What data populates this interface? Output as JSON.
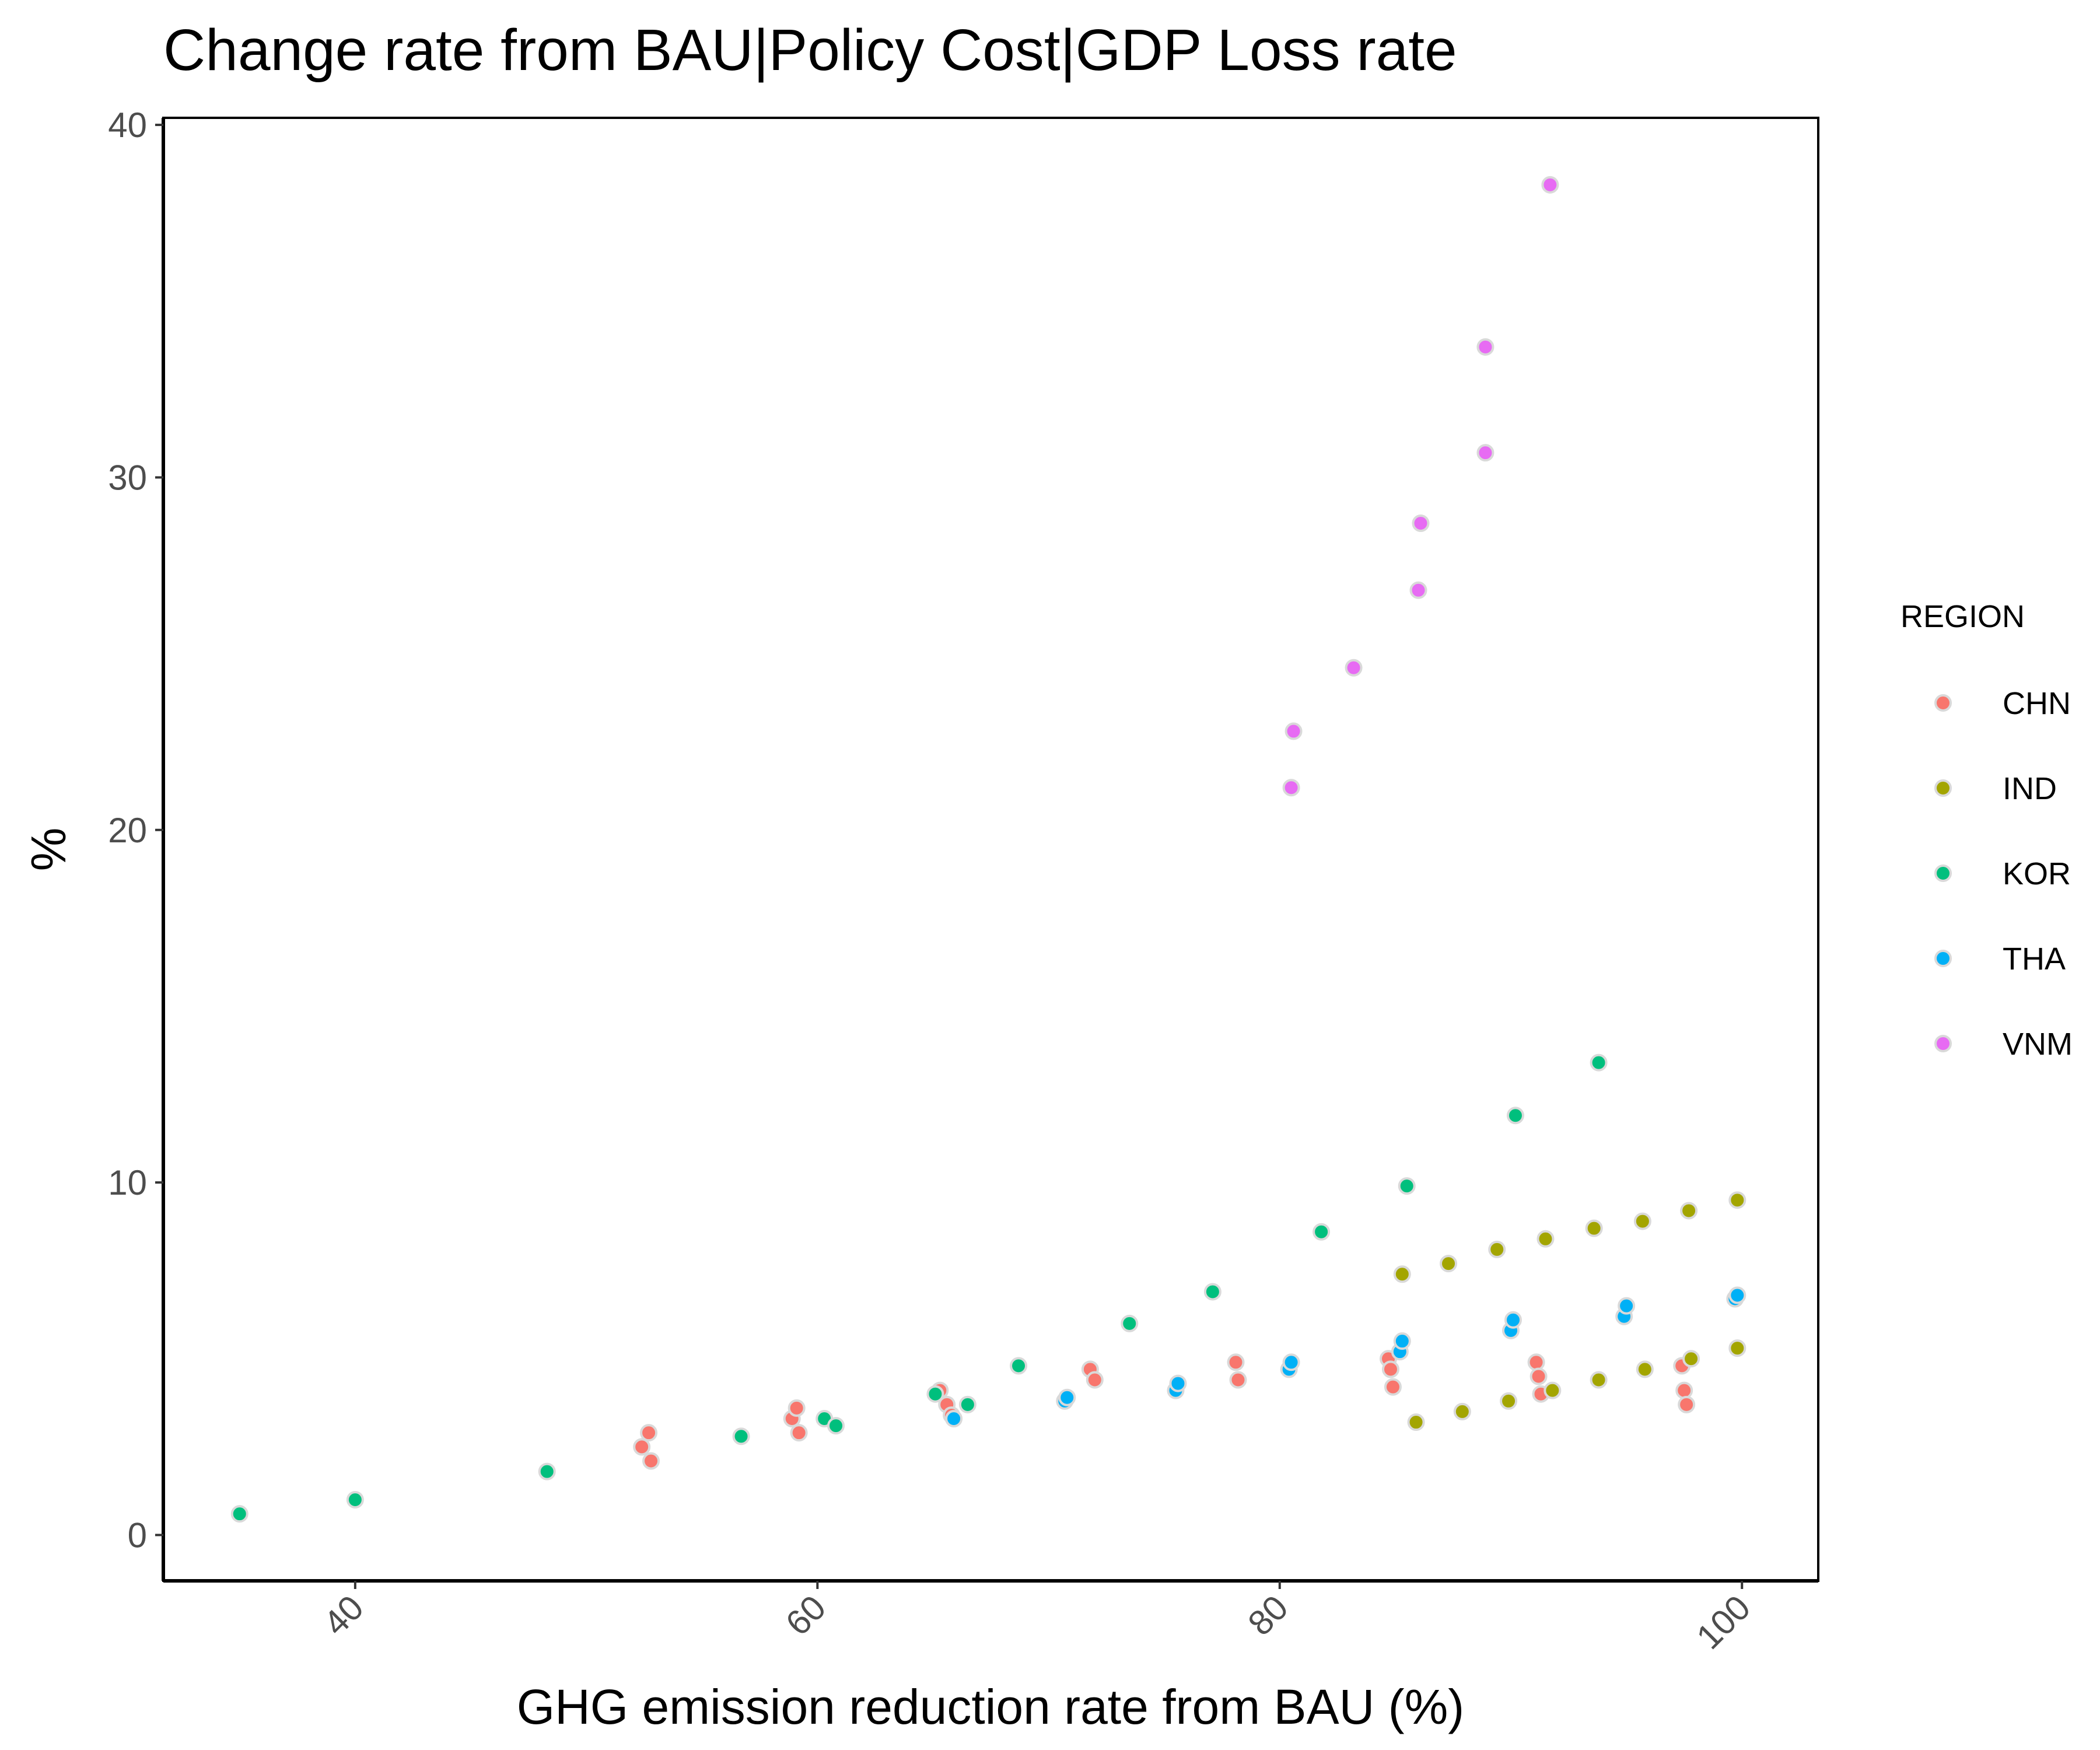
{
  "chart_data": {
    "type": "scatter",
    "title": "Change rate from BAU|Policy Cost|GDP Loss rate",
    "xlabel": "GHG emission reduction rate from BAU (%)",
    "ylabel": "%",
    "xlim": [
      31.7,
      103.3
    ],
    "ylim": [
      -1.3,
      40.2
    ],
    "x_ticks": [
      40,
      60,
      80,
      100
    ],
    "y_ticks": [
      0,
      10,
      20,
      30,
      40
    ],
    "grid": false,
    "legend": {
      "title": "REGION",
      "position": "right"
    },
    "series": [
      {
        "name": "CHN",
        "color": "#F8766D",
        "points": [
          [
            52.4,
            2.5
          ],
          [
            52.7,
            2.9
          ],
          [
            52.8,
            2.1
          ],
          [
            58.9,
            3.3
          ],
          [
            59.1,
            3.6
          ],
          [
            59.2,
            2.9
          ],
          [
            65.3,
            4.1
          ],
          [
            65.6,
            3.7
          ],
          [
            65.8,
            3.4
          ],
          [
            71.8,
            4.7
          ],
          [
            72.0,
            4.4
          ],
          [
            78.1,
            4.9
          ],
          [
            78.2,
            4.4
          ],
          [
            84.7,
            5.0
          ],
          [
            84.8,
            4.7
          ],
          [
            84.9,
            4.2
          ],
          [
            91.1,
            4.9
          ],
          [
            91.2,
            4.5
          ],
          [
            91.3,
            4.0
          ],
          [
            97.4,
            4.8
          ],
          [
            97.5,
            4.1
          ],
          [
            97.6,
            3.7
          ]
        ]
      },
      {
        "name": "IND",
        "color": "#A3A500",
        "points": [
          [
            85.3,
            7.4
          ],
          [
            87.3,
            7.7
          ],
          [
            89.4,
            8.1
          ],
          [
            91.5,
            8.4
          ],
          [
            93.6,
            8.7
          ],
          [
            95.7,
            8.9
          ],
          [
            97.7,
            9.2
          ],
          [
            99.8,
            9.5
          ],
          [
            85.9,
            3.2
          ],
          [
            87.9,
            3.5
          ],
          [
            89.9,
            3.8
          ],
          [
            91.8,
            4.1
          ],
          [
            93.8,
            4.4
          ],
          [
            95.8,
            4.7
          ],
          [
            97.8,
            5.0
          ],
          [
            99.8,
            5.3
          ]
        ]
      },
      {
        "name": "KOR",
        "color": "#00BF7D",
        "points": [
          [
            35.0,
            0.6
          ],
          [
            40.0,
            1.0
          ],
          [
            48.3,
            1.8
          ],
          [
            56.7,
            2.8
          ],
          [
            60.3,
            3.3
          ],
          [
            60.8,
            3.1
          ],
          [
            65.1,
            4.0
          ],
          [
            66.5,
            3.7
          ],
          [
            68.7,
            4.8
          ],
          [
            73.5,
            6.0
          ],
          [
            77.1,
            6.9
          ],
          [
            81.8,
            8.6
          ],
          [
            85.5,
            9.9
          ],
          [
            90.2,
            11.9
          ],
          [
            93.8,
            13.4
          ]
        ]
      },
      {
        "name": "THA",
        "color": "#00B0F6",
        "points": [
          [
            65.9,
            3.3
          ],
          [
            70.7,
            3.8
          ],
          [
            70.8,
            3.9
          ],
          [
            75.5,
            4.1
          ],
          [
            75.6,
            4.3
          ],
          [
            80.4,
            4.7
          ],
          [
            80.5,
            4.9
          ],
          [
            85.2,
            5.2
          ],
          [
            85.3,
            5.5
          ],
          [
            90.0,
            5.8
          ],
          [
            90.1,
            6.1
          ],
          [
            94.9,
            6.2
          ],
          [
            95.0,
            6.5
          ],
          [
            99.7,
            6.7
          ],
          [
            99.8,
            6.8
          ]
        ]
      },
      {
        "name": "VNM",
        "color": "#E76BF3",
        "points": [
          [
            80.5,
            21.2
          ],
          [
            80.6,
            22.8
          ],
          [
            83.2,
            24.6
          ],
          [
            86.0,
            26.8
          ],
          [
            86.1,
            28.7
          ],
          [
            88.9,
            30.7
          ],
          [
            88.9,
            33.7
          ],
          [
            91.7,
            38.3
          ]
        ]
      }
    ]
  }
}
